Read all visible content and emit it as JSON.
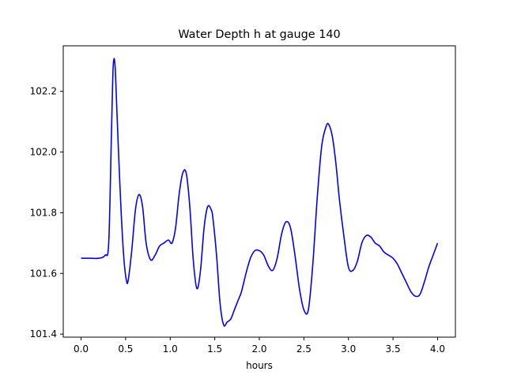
{
  "chart_data": {
    "type": "line",
    "title": "Water Depth h at gauge 140",
    "xlabel": "hours",
    "ylabel": "",
    "xlim": [
      -0.2,
      4.2
    ],
    "ylim": [
      101.39,
      102.35
    ],
    "xticks": [
      0.0,
      0.5,
      1.0,
      1.5,
      2.0,
      2.5,
      3.0,
      3.5,
      4.0
    ],
    "xtick_labels": [
      "0.0",
      "0.5",
      "1.0",
      "1.5",
      "2.0",
      "2.5",
      "3.0",
      "3.5",
      "4.0"
    ],
    "yticks": [
      101.4,
      101.6,
      101.8,
      102.0,
      102.2
    ],
    "ytick_labels": [
      "101.4",
      "101.6",
      "101.8",
      "102.0",
      "102.2"
    ],
    "grid": false,
    "series": [
      {
        "color": "#0000ff",
        "x": [
          0.0,
          0.1,
          0.2,
          0.27,
          0.31,
          0.34,
          0.36,
          0.38,
          0.4,
          0.42,
          0.45,
          0.48,
          0.51,
          0.53,
          0.57,
          0.61,
          0.65,
          0.69,
          0.73,
          0.78,
          0.83,
          0.88,
          0.93,
          0.98,
          1.02,
          1.06,
          1.1,
          1.14,
          1.18,
          1.22,
          1.26,
          1.3,
          1.34,
          1.38,
          1.42,
          1.46,
          1.48,
          1.52,
          1.56,
          1.6,
          1.64,
          1.68,
          1.72,
          1.76,
          1.8,
          1.85,
          1.9,
          1.95,
          2.0,
          2.05,
          2.1,
          2.15,
          2.2,
          2.25,
          2.3,
          2.35,
          2.4,
          2.45,
          2.5,
          2.55,
          2.6,
          2.65,
          2.7,
          2.75,
          2.78,
          2.82,
          2.86,
          2.9,
          2.95,
          3.0,
          3.05,
          3.1,
          3.15,
          3.2,
          3.25,
          3.3,
          3.35,
          3.4,
          3.45,
          3.5,
          3.55,
          3.6,
          3.65,
          3.7,
          3.75,
          3.8,
          3.85,
          3.9,
          3.95,
          4.0
        ],
        "y": [
          101.65,
          101.65,
          101.65,
          101.66,
          101.7,
          102.05,
          102.28,
          102.29,
          102.15,
          102.0,
          101.8,
          101.65,
          101.575,
          101.58,
          101.68,
          101.81,
          101.86,
          101.82,
          101.7,
          101.645,
          101.66,
          101.69,
          101.7,
          101.71,
          101.7,
          101.75,
          101.86,
          101.93,
          101.93,
          101.82,
          101.64,
          101.55,
          101.61,
          101.75,
          101.82,
          101.81,
          101.78,
          101.66,
          101.5,
          101.43,
          101.44,
          101.45,
          101.48,
          101.51,
          101.54,
          101.6,
          101.65,
          101.675,
          101.675,
          101.66,
          101.625,
          101.61,
          101.65,
          101.73,
          101.77,
          101.75,
          101.66,
          101.55,
          101.48,
          101.48,
          101.63,
          101.85,
          102.02,
          102.085,
          102.09,
          102.05,
          101.96,
          101.84,
          101.72,
          101.62,
          101.61,
          101.64,
          101.7,
          101.725,
          101.72,
          101.7,
          101.69,
          101.67,
          101.66,
          101.65,
          101.63,
          101.6,
          101.57,
          101.54,
          101.525,
          101.53,
          101.57,
          101.62,
          101.66,
          101.7
        ]
      }
    ]
  }
}
